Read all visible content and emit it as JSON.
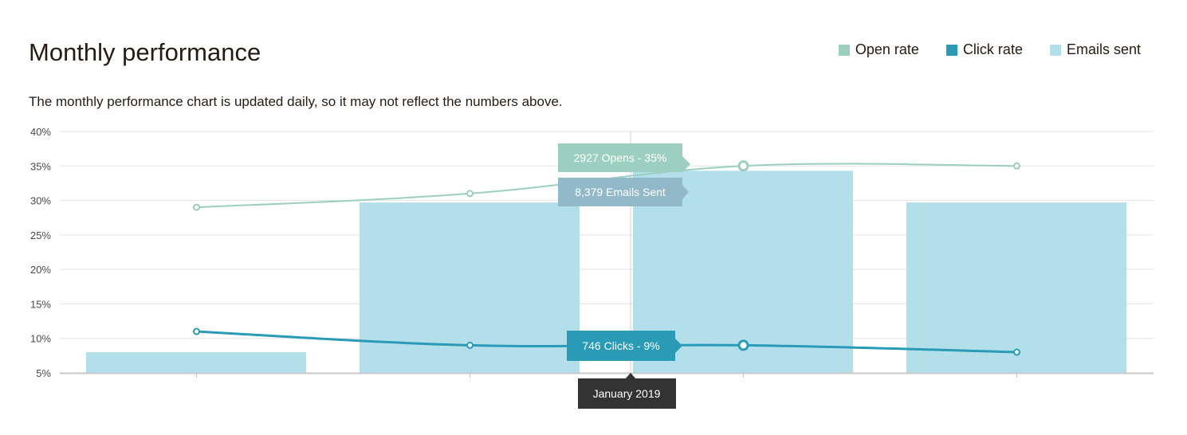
{
  "page": {
    "title": "Monthly performance",
    "subtitle": "The monthly performance chart is updated daily, so it may not reflect the numbers above."
  },
  "legend": [
    {
      "label": "Open rate",
      "color": "#9ccfbf"
    },
    {
      "label": "Click rate",
      "color": "#2a9bb7"
    },
    {
      "label": "Emails sent",
      "color": "#b3dfeb"
    }
  ],
  "chart_data": {
    "type": "bar",
    "y_ticks": [
      "40%",
      "35%",
      "30%",
      "25%",
      "20%",
      "15%",
      "10%",
      "5%"
    ],
    "ylim": [
      5,
      40
    ],
    "series": [
      {
        "name": "Emails sent",
        "type": "bar",
        "values": [
          8,
          29.7,
          34.3,
          29.7
        ],
        "color": "#b3dfeb"
      },
      {
        "name": "Open rate",
        "type": "line",
        "values": [
          29,
          31,
          35,
          35
        ],
        "color": "#9ccfbf"
      },
      {
        "name": "Click rate",
        "type": "line",
        "values": [
          11,
          9,
          9,
          8
        ],
        "color": "#2a9bb7"
      }
    ],
    "tooltips": {
      "opens": "2927 Opens - 35%",
      "emails": "8,379 Emails Sent",
      "clicks": "746 Clicks - 9%",
      "month": "January 2019"
    },
    "grid": true
  }
}
